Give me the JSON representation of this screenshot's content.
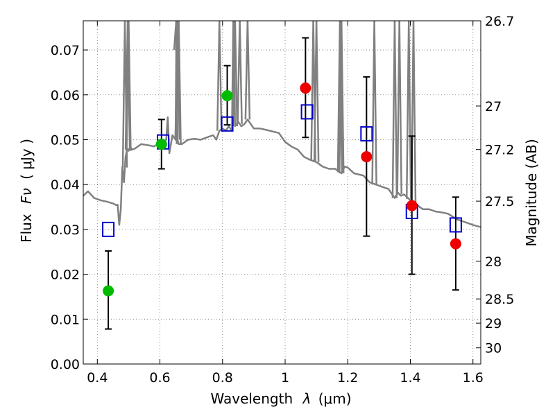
{
  "chart_data": {
    "type": "scatter",
    "xlabel_prefix": "Wavelength",
    "xlabel_symbol": "λ",
    "xlabel_unit": "(μm)",
    "ylabel_prefix": "Flux",
    "ylabel_symbol": "Fν",
    "ylabel_unit": "( μJy )",
    "y2label": "Magnitude (AB)",
    "xlim": [
      0.355,
      1.625
    ],
    "ylim": [
      0.0,
      0.0765
    ],
    "xticks": [
      0.4,
      0.6,
      0.8,
      1.0,
      1.2,
      1.4,
      1.6
    ],
    "xtick_labels": [
      "0.4",
      "0.6",
      "0.8",
      "1",
      "1.2",
      "1.4",
      "1.6"
    ],
    "yticks": [
      0.0,
      0.01,
      0.02,
      0.03,
      0.04,
      0.05,
      0.06,
      0.07
    ],
    "ytick_labels": [
      "0.00",
      "0.01",
      "0.02",
      "0.03",
      "0.04",
      "0.05",
      "0.06",
      "0.07"
    ],
    "y2ticks": [
      {
        "label": "26.7",
        "flux": 0.0765
      },
      {
        "label": "27",
        "flux": 0.0575
      },
      {
        "label": "27.2",
        "flux": 0.0478
      },
      {
        "label": "27.5",
        "flux": 0.0363
      },
      {
        "label": "28",
        "flux": 0.0229
      },
      {
        "label": "28.5",
        "flux": 0.0145
      },
      {
        "label": "29",
        "flux": 0.0091
      },
      {
        "label": "30",
        "flux": 0.0036
      }
    ],
    "colors": {
      "spectrum": "#808080",
      "green": "#00bb00",
      "red": "#ee0000",
      "model_box": "#0000cc",
      "errbar": "#000000"
    },
    "series": [
      {
        "name": "spectrum",
        "type": "line",
        "x": [
          0.355,
          0.37,
          0.39,
          0.41,
          0.43,
          0.45,
          0.46,
          0.465,
          0.47,
          0.475,
          0.48,
          0.485,
          0.49,
          0.495,
          0.5,
          0.505,
          0.51,
          0.52,
          0.54,
          0.56,
          0.58,
          0.6,
          0.62,
          0.625,
          0.63,
          0.64,
          0.65,
          0.653,
          0.656,
          0.66,
          0.67,
          0.69,
          0.71,
          0.73,
          0.75,
          0.77,
          0.78,
          0.79,
          0.8,
          0.81,
          0.82,
          0.83,
          0.835,
          0.84,
          0.85,
          0.86,
          0.87,
          0.88,
          0.9,
          0.92,
          0.95,
          0.98,
          1.0,
          1.02,
          1.04,
          1.06,
          1.08,
          1.1,
          1.12,
          1.14,
          1.16,
          1.18,
          1.19,
          1.2,
          1.22,
          1.25,
          1.27,
          1.29,
          1.31,
          1.33,
          1.35,
          1.36,
          1.37,
          1.38,
          1.4,
          1.42,
          1.44,
          1.46,
          1.48,
          1.5,
          1.52,
          1.55,
          1.58,
          1.6,
          1.625
        ],
        "y": [
          0.0375,
          0.0385,
          0.037,
          0.0365,
          0.0362,
          0.0358,
          0.0354,
          0.0355,
          0.031,
          0.0345,
          0.044,
          0.0405,
          0.046,
          0.048,
          0.0475,
          0.0485,
          0.0478,
          0.048,
          0.049,
          0.0488,
          0.0485,
          0.0492,
          0.05,
          0.055,
          0.047,
          0.051,
          0.05,
          0.08,
          0.05,
          0.049,
          0.049,
          0.05,
          0.0502,
          0.05,
          0.0505,
          0.051,
          0.05,
          0.052,
          0.0525,
          0.052,
          0.053,
          0.052,
          0.08,
          0.053,
          0.054,
          0.053,
          0.0535,
          0.0545,
          0.0525,
          0.0525,
          0.052,
          0.0515,
          0.0495,
          0.0485,
          0.0478,
          0.0462,
          0.0455,
          0.045,
          0.044,
          0.0435,
          0.0435,
          0.0425,
          0.044,
          0.0438,
          0.0425,
          0.042,
          0.0405,
          0.04,
          0.0395,
          0.039,
          0.037,
          0.0382,
          0.0375,
          0.0378,
          0.0365,
          0.0355,
          0.0345,
          0.0345,
          0.034,
          0.0338,
          0.0335,
          0.0322,
          0.0315,
          0.031,
          0.0305
        ]
      },
      {
        "name": "emission_lines",
        "type": "spikes",
        "x": [
          0.488,
          0.497,
          0.5,
          0.652,
          0.656,
          0.66,
          0.79,
          0.84,
          0.855,
          0.88,
          1.09,
          1.1,
          1.175,
          1.18,
          1.285,
          1.35,
          1.365,
          1.395,
          1.41
        ]
      },
      {
        "name": "observed_green",
        "type": "points",
        "x": [
          0.435,
          0.605,
          0.815
        ],
        "y": [
          0.0163,
          0.049,
          0.0598
        ],
        "yerr_low": [
          0.0078,
          0.0435,
          0.0533
        ],
        "yerr_high": [
          0.0252,
          0.0545,
          0.0665
        ]
      },
      {
        "name": "observed_red",
        "type": "points",
        "x": [
          1.065,
          1.26,
          1.405,
          1.545
        ],
        "y": [
          0.0615,
          0.0462,
          0.0353,
          0.0268
        ],
        "yerr_low": [
          0.0505,
          0.0285,
          0.02,
          0.0165
        ],
        "yerr_high": [
          0.0727,
          0.064,
          0.0508,
          0.0372
        ]
      },
      {
        "name": "model_photometry",
        "type": "boxes",
        "x": [
          0.435,
          0.61,
          0.815,
          1.07,
          1.26,
          1.405,
          1.545
        ],
        "y": [
          0.03,
          0.0495,
          0.0535,
          0.0562,
          0.0513,
          0.034,
          0.031
        ]
      }
    ]
  }
}
